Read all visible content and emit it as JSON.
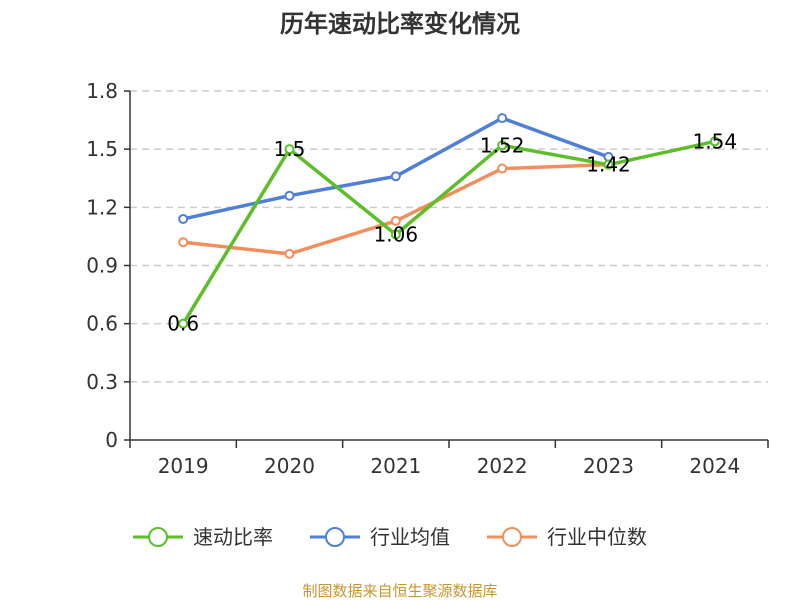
{
  "chart_data": {
    "type": "line",
    "title": "历年速动比率变化情况",
    "categories": [
      "2019",
      "2020",
      "2021",
      "2022",
      "2023",
      "2024"
    ],
    "yticks": [
      "0",
      "0.3",
      "0.6",
      "0.9",
      "1.2",
      "1.5",
      "1.8"
    ],
    "ylim": [
      0,
      1.8
    ],
    "grid": "horizontal-dashed",
    "legend_position": "bottom",
    "series": [
      {
        "name": "速动比率",
        "color": "#5cbf2a",
        "values": [
          0.6,
          1.5,
          1.06,
          1.52,
          1.42,
          1.54
        ],
        "labels": [
          "0.6",
          "1.5",
          "1.06",
          "1.52",
          "1.42",
          "1.54"
        ]
      },
      {
        "name": "行业均值",
        "color": "#4f7fd9",
        "values": [
          1.14,
          1.26,
          1.36,
          1.66,
          1.46,
          null
        ]
      },
      {
        "name": "行业中位数",
        "color": "#f28e5b",
        "values": [
          1.02,
          0.96,
          1.13,
          1.4,
          1.42,
          null
        ]
      }
    ]
  },
  "source": {
    "text": "制图数据来自恒生聚源数据库",
    "color": "#c8962e"
  }
}
